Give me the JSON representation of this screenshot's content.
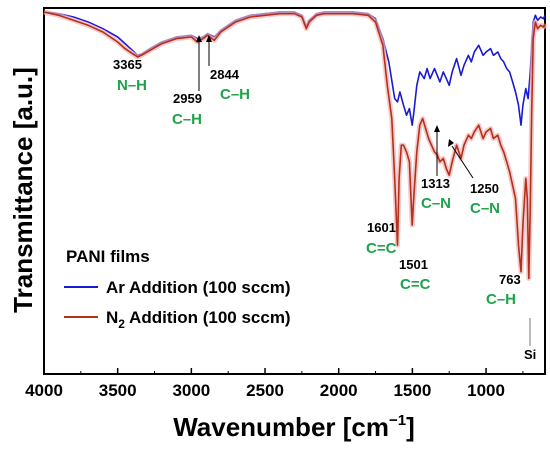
{
  "chart_data": {
    "type": "line",
    "xlabel": "Wavenumber [cm",
    "xlabel_sup": "−1",
    "xlabel_tail": "]",
    "ylabel": "Transmittance [a.u.]",
    "xlim": [
      4000,
      600
    ],
    "x_ticks": [
      4000,
      3500,
      3000,
      2500,
      2000,
      1500,
      1000
    ],
    "y_ticks_shown": false,
    "legend": {
      "title": "PANI films",
      "placement": "lower-left",
      "entries": [
        {
          "label": "Ar Addition (100 sccm)",
          "color": "#1a1ad6"
        },
        {
          "label_pre": "N",
          "label_sub": "2",
          "label_post": " Addition (100 sccm)",
          "color": "#b5301c"
        }
      ]
    },
    "series": [
      {
        "name": "Ar Addition (100 sccm)",
        "color": "#1a1ad6",
        "points": [
          [
            4000,
            1.0
          ],
          [
            3900,
            0.995
          ],
          [
            3800,
            0.985
          ],
          [
            3700,
            0.97
          ],
          [
            3600,
            0.95
          ],
          [
            3500,
            0.925
          ],
          [
            3450,
            0.905
          ],
          [
            3400,
            0.885
          ],
          [
            3365,
            0.87
          ],
          [
            3330,
            0.875
          ],
          [
            3280,
            0.89
          ],
          [
            3200,
            0.91
          ],
          [
            3100,
            0.925
          ],
          [
            3000,
            0.93
          ],
          [
            2959,
            0.92
          ],
          [
            2920,
            0.925
          ],
          [
            2890,
            0.935
          ],
          [
            2844,
            0.925
          ],
          [
            2800,
            0.945
          ],
          [
            2700,
            0.975
          ],
          [
            2600,
            0.99
          ],
          [
            2500,
            0.995
          ],
          [
            2400,
            1.0
          ],
          [
            2300,
            1.0
          ],
          [
            2250,
            0.99
          ],
          [
            2220,
            0.955
          ],
          [
            2200,
            0.975
          ],
          [
            2150,
            0.995
          ],
          [
            2100,
            1.0
          ],
          [
            2000,
            1.0
          ],
          [
            1900,
            1.0
          ],
          [
            1800,
            0.995
          ],
          [
            1750,
            0.98
          ],
          [
            1700,
            0.92
          ],
          [
            1660,
            0.85
          ],
          [
            1620,
            0.74
          ],
          [
            1601,
            0.73
          ],
          [
            1585,
            0.76
          ],
          [
            1560,
            0.72
          ],
          [
            1540,
            0.69
          ],
          [
            1520,
            0.71
          ],
          [
            1501,
            0.66
          ],
          [
            1490,
            0.7
          ],
          [
            1470,
            0.78
          ],
          [
            1450,
            0.82
          ],
          [
            1420,
            0.8
          ],
          [
            1400,
            0.83
          ],
          [
            1380,
            0.8
          ],
          [
            1350,
            0.83
          ],
          [
            1313,
            0.79
          ],
          [
            1290,
            0.82
          ],
          [
            1270,
            0.8
          ],
          [
            1250,
            0.78
          ],
          [
            1230,
            0.82
          ],
          [
            1200,
            0.86
          ],
          [
            1170,
            0.81
          ],
          [
            1150,
            0.84
          ],
          [
            1120,
            0.87
          ],
          [
            1100,
            0.85
          ],
          [
            1080,
            0.88
          ],
          [
            1050,
            0.9
          ],
          [
            1020,
            0.87
          ],
          [
            1000,
            0.88
          ],
          [
            970,
            0.89
          ],
          [
            950,
            0.87
          ],
          [
            920,
            0.88
          ],
          [
            900,
            0.86
          ],
          [
            880,
            0.85
          ],
          [
            860,
            0.83
          ],
          [
            840,
            0.82
          ],
          [
            820,
            0.79
          ],
          [
            800,
            0.76
          ],
          [
            780,
            0.72
          ],
          [
            763,
            0.66
          ],
          [
            750,
            0.72
          ],
          [
            730,
            0.77
          ],
          [
            715,
            0.74
          ],
          [
            700,
            0.82
          ],
          [
            690,
            0.9
          ],
          [
            680,
            0.97
          ],
          [
            665,
            0.99
          ],
          [
            650,
            0.975
          ],
          [
            630,
            0.985
          ],
          [
            610,
            0.98
          ],
          [
            600,
            0.99
          ]
        ]
      },
      {
        "name": "N2 Addition (100 sccm)",
        "color": "#b5301c",
        "points": [
          [
            4000,
            1.0
          ],
          [
            3900,
            0.99
          ],
          [
            3800,
            0.975
          ],
          [
            3700,
            0.96
          ],
          [
            3600,
            0.94
          ],
          [
            3500,
            0.91
          ],
          [
            3450,
            0.89
          ],
          [
            3400,
            0.875
          ],
          [
            3365,
            0.865
          ],
          [
            3330,
            0.872
          ],
          [
            3280,
            0.885
          ],
          [
            3200,
            0.905
          ],
          [
            3100,
            0.92
          ],
          [
            3000,
            0.925
          ],
          [
            2959,
            0.91
          ],
          [
            2920,
            0.92
          ],
          [
            2890,
            0.93
          ],
          [
            2844,
            0.915
          ],
          [
            2800,
            0.94
          ],
          [
            2700,
            0.97
          ],
          [
            2600,
            0.985
          ],
          [
            2500,
            0.99
          ],
          [
            2400,
            0.995
          ],
          [
            2300,
            0.995
          ],
          [
            2250,
            0.985
          ],
          [
            2220,
            0.95
          ],
          [
            2200,
            0.97
          ],
          [
            2150,
            0.99
          ],
          [
            2100,
            0.995
          ],
          [
            2000,
            0.995
          ],
          [
            1900,
            0.995
          ],
          [
            1800,
            0.99
          ],
          [
            1750,
            0.97
          ],
          [
            1700,
            0.9
          ],
          [
            1670,
            0.78
          ],
          [
            1640,
            0.68
          ],
          [
            1620,
            0.5
          ],
          [
            1601,
            0.3
          ],
          [
            1590,
            0.5
          ],
          [
            1575,
            0.6
          ],
          [
            1560,
            0.6
          ],
          [
            1540,
            0.58
          ],
          [
            1520,
            0.55
          ],
          [
            1501,
            0.36
          ],
          [
            1490,
            0.45
          ],
          [
            1470,
            0.58
          ],
          [
            1450,
            0.66
          ],
          [
            1430,
            0.68
          ],
          [
            1410,
            0.65
          ],
          [
            1390,
            0.62
          ],
          [
            1370,
            0.6
          ],
          [
            1350,
            0.58
          ],
          [
            1330,
            0.57
          ],
          [
            1313,
            0.55
          ],
          [
            1290,
            0.56
          ],
          [
            1270,
            0.53
          ],
          [
            1250,
            0.51
          ],
          [
            1230,
            0.55
          ],
          [
            1200,
            0.6
          ],
          [
            1170,
            0.56
          ],
          [
            1150,
            0.6
          ],
          [
            1120,
            0.63
          ],
          [
            1100,
            0.62
          ],
          [
            1080,
            0.64
          ],
          [
            1050,
            0.66
          ],
          [
            1020,
            0.62
          ],
          [
            1000,
            0.64
          ],
          [
            970,
            0.65
          ],
          [
            950,
            0.62
          ],
          [
            920,
            0.63
          ],
          [
            900,
            0.6
          ],
          [
            880,
            0.58
          ],
          [
            860,
            0.55
          ],
          [
            840,
            0.52
          ],
          [
            820,
            0.48
          ],
          [
            800,
            0.44
          ],
          [
            780,
            0.3
          ],
          [
            763,
            0.22
          ],
          [
            750,
            0.36
          ],
          [
            730,
            0.5
          ],
          [
            720,
            0.44
          ],
          [
            710,
            0.2
          ],
          [
            700,
            0.42
          ],
          [
            690,
            0.7
          ],
          [
            680,
            0.92
          ],
          [
            665,
            0.97
          ],
          [
            650,
            0.95
          ],
          [
            630,
            0.96
          ],
          [
            610,
            0.955
          ],
          [
            600,
            0.965
          ]
        ]
      }
    ],
    "annotations": [
      {
        "number": "3365",
        "bond": "N–H"
      },
      {
        "number": "2959",
        "bond": "C–H"
      },
      {
        "number": "2844",
        "bond": "C–H"
      },
      {
        "number": "1601",
        "bond": "C=C"
      },
      {
        "number": "1501",
        "bond": "C=C"
      },
      {
        "number": "1313",
        "bond": "C–N"
      },
      {
        "number": "1250",
        "bond": "C–N"
      },
      {
        "number": "763",
        "bond": "C–H"
      },
      {
        "number": "Si",
        "bond": ""
      }
    ]
  }
}
